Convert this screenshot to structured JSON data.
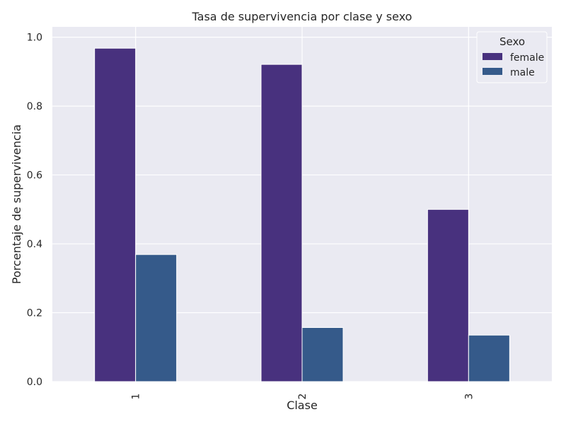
{
  "chart_data": {
    "type": "bar",
    "title": "Tasa de supervivencia por clase y sexo",
    "xlabel": "Clase",
    "ylabel": "Porcentaje de supervivencia",
    "categories": [
      "1",
      "2",
      "3"
    ],
    "series": [
      {
        "name": "female",
        "color": "#48317e",
        "values": [
          0.968,
          0.921,
          0.5
        ]
      },
      {
        "name": "male",
        "color": "#355a8a",
        "values": [
          0.369,
          0.157,
          0.135
        ]
      }
    ],
    "ylim": [
      0,
      1.03
    ],
    "yticks": [
      0.0,
      0.2,
      0.4,
      0.6,
      0.8,
      1.0
    ],
    "ytick_labels": [
      "0.0",
      "0.2",
      "0.4",
      "0.6",
      "0.8",
      "1.0"
    ],
    "grid": true,
    "legend": {
      "title": "Sexo",
      "placement": "top-right"
    },
    "background_color": "#eaeaf2",
    "grid_color": "#ffffff"
  }
}
